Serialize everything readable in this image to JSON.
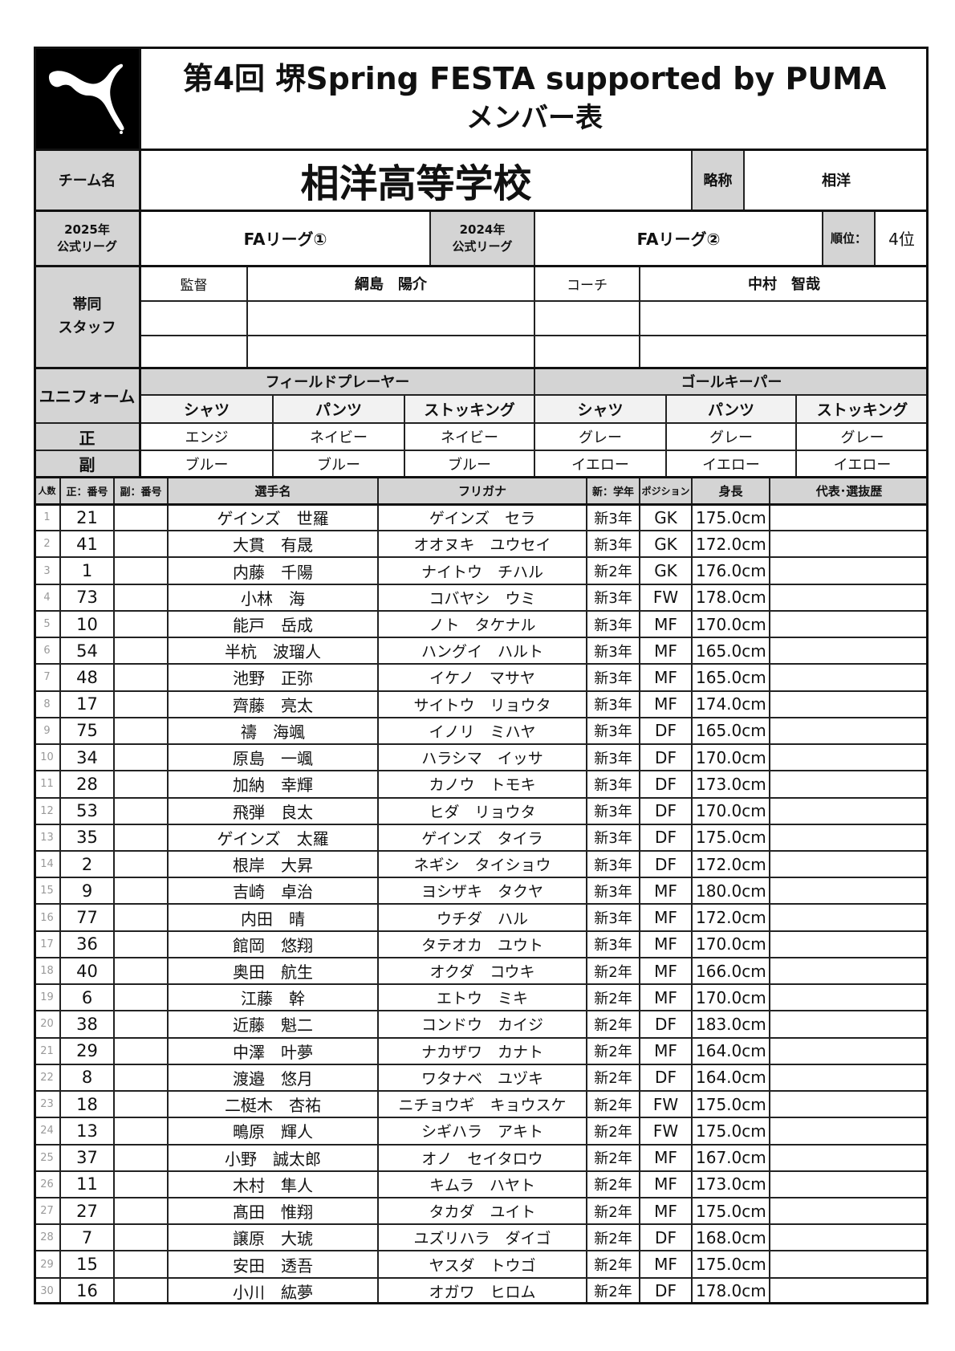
{
  "header": {
    "title": "第4回 堺Spring FESTA supported by PUMA",
    "subtitle": "メンバー表",
    "logo": "PUMA"
  },
  "team": {
    "label": "チーム名",
    "name": "相洋高等学校",
    "abbr_label": "略称",
    "abbr": "相洋"
  },
  "league": {
    "y2025_label1": "2025年",
    "y2025_label2": "公式リーグ",
    "y2025": "FAリーグ①",
    "y2024_label1": "2024年",
    "y2024_label2": "公式リーグ",
    "y2024": "FAリーグ②",
    "rank_label": "順位：",
    "rank": "4位"
  },
  "staff": {
    "label1": "帯同",
    "label2": "スタッフ",
    "rows": [
      {
        "role1": "監督",
        "name1": "綱島　陽介",
        "role2": "コーチ",
        "name2": "中村　智哉"
      },
      {
        "role1": "",
        "name1": "",
        "role2": "",
        "name2": ""
      },
      {
        "role1": "",
        "name1": "",
        "role2": "",
        "name2": ""
      }
    ]
  },
  "uniform": {
    "label": "ユニフォーム",
    "field": "フィールドプレーヤー",
    "gk": "ゴールキーパー",
    "items": [
      "シャツ",
      "パンツ",
      "ストッキング",
      "シャツ",
      "パンツ",
      "ストッキング"
    ],
    "primary_label": "正",
    "secondary_label": "副",
    "primary": [
      "エンジ",
      "ネイビー",
      "ネイビー",
      "グレー",
      "グレー",
      "グレー"
    ],
    "secondary": [
      "ブルー",
      "ブルー",
      "ブルー",
      "イエロー",
      "イエロー",
      "イエロー"
    ]
  },
  "columns": [
    "人数",
    "正：番号",
    "副：番号",
    "選手名",
    "フリガナ",
    "新：学年",
    "ポジション",
    "身長",
    "代表･選抜歴"
  ],
  "players": [
    [
      "1",
      "21",
      "",
      "ゲインズ　世羅",
      "ゲインズ　セラ",
      "新3年",
      "GK",
      "175.0cm",
      ""
    ],
    [
      "2",
      "41",
      "",
      "大貫　有晟",
      "オオヌキ　ユウセイ",
      "新3年",
      "GK",
      "172.0cm",
      ""
    ],
    [
      "3",
      "1",
      "",
      "内藤　千陽",
      "ナイトウ　チハル",
      "新2年",
      "GK",
      "176.0cm",
      ""
    ],
    [
      "4",
      "73",
      "",
      "小林　海",
      "コバヤシ　ウミ",
      "新3年",
      "FW",
      "178.0cm",
      ""
    ],
    [
      "5",
      "10",
      "",
      "能戸　岳成",
      "ノト　タケナル",
      "新3年",
      "MF",
      "170.0cm",
      ""
    ],
    [
      "6",
      "54",
      "",
      "半杭　波瑠人",
      "ハングイ　ハルト",
      "新3年",
      "MF",
      "165.0cm",
      ""
    ],
    [
      "7",
      "48",
      "",
      "池野　正弥",
      "イケノ　マサヤ",
      "新3年",
      "MF",
      "165.0cm",
      ""
    ],
    [
      "8",
      "17",
      "",
      "齊藤　亮太",
      "サイトウ　リョウタ",
      "新3年",
      "MF",
      "174.0cm",
      ""
    ],
    [
      "9",
      "75",
      "",
      "禱　海颯",
      "イノリ　ミハヤ",
      "新3年",
      "DF",
      "165.0cm",
      ""
    ],
    [
      "10",
      "34",
      "",
      "原島　一颯",
      "ハラシマ　イッサ",
      "新3年",
      "DF",
      "170.0cm",
      ""
    ],
    [
      "11",
      "28",
      "",
      "加納　幸輝",
      "カノウ　トモキ",
      "新3年",
      "DF",
      "173.0cm",
      ""
    ],
    [
      "12",
      "53",
      "",
      "飛弾　良太",
      "ヒダ　リョウタ",
      "新3年",
      "DF",
      "170.0cm",
      ""
    ],
    [
      "13",
      "35",
      "",
      "ゲインズ　太羅",
      "ゲインズ　タイラ",
      "新3年",
      "DF",
      "175.0cm",
      ""
    ],
    [
      "14",
      "2",
      "",
      "根岸　大昇",
      "ネギシ　タイショウ",
      "新3年",
      "DF",
      "172.0cm",
      ""
    ],
    [
      "15",
      "9",
      "",
      "吉崎　卓治",
      "ヨシザキ　タクヤ",
      "新3年",
      "MF",
      "180.0cm",
      ""
    ],
    [
      "16",
      "77",
      "",
      "内田　晴",
      "ウチダ　ハル",
      "新3年",
      "MF",
      "172.0cm",
      ""
    ],
    [
      "17",
      "36",
      "",
      "館岡　悠翔",
      "タテオカ　ユウト",
      "新3年",
      "MF",
      "170.0cm",
      ""
    ],
    [
      "18",
      "40",
      "",
      "奥田　航生",
      "オクダ　コウキ",
      "新2年",
      "MF",
      "166.0cm",
      ""
    ],
    [
      "19",
      "6",
      "",
      "江藤　幹",
      "エトウ　ミキ",
      "新2年",
      "MF",
      "170.0cm",
      ""
    ],
    [
      "20",
      "38",
      "",
      "近藤　魁二",
      "コンドウ　カイジ",
      "新2年",
      "DF",
      "183.0cm",
      ""
    ],
    [
      "21",
      "29",
      "",
      "中澤　叶夢",
      "ナカザワ　カナト",
      "新2年",
      "MF",
      "164.0cm",
      ""
    ],
    [
      "22",
      "8",
      "",
      "渡邉　悠月",
      "ワタナベ　ユヅキ",
      "新2年",
      "DF",
      "164.0cm",
      ""
    ],
    [
      "23",
      "18",
      "",
      "二梃木　杏祐",
      "ニチョウギ　キョウスケ",
      "新2年",
      "FW",
      "175.0cm",
      ""
    ],
    [
      "24",
      "13",
      "",
      "鴫原　輝人",
      "シギハラ　アキト",
      "新2年",
      "FW",
      "175.0cm",
      ""
    ],
    [
      "25",
      "37",
      "",
      "小野　誠太郎",
      "オノ　セイタロウ",
      "新2年",
      "MF",
      "167.0cm",
      ""
    ],
    [
      "26",
      "11",
      "",
      "木村　隼人",
      "キムラ　ハヤト",
      "新2年",
      "MF",
      "173.0cm",
      ""
    ],
    [
      "27",
      "27",
      "",
      "髙田　惟翔",
      "タカダ　ユイト",
      "新2年",
      "MF",
      "175.0cm",
      ""
    ],
    [
      "28",
      "7",
      "",
      "譲原　大琥",
      "ユズリハラ　ダイゴ",
      "新2年",
      "DF",
      "168.0cm",
      ""
    ],
    [
      "29",
      "15",
      "",
      "安田　透吾",
      "ヤスダ　トウゴ",
      "新2年",
      "MF",
      "175.0cm",
      ""
    ],
    [
      "30",
      "16",
      "",
      "小川　紘夢",
      "オガワ　ヒロム",
      "新2年",
      "DF",
      "178.0cm",
      ""
    ]
  ]
}
